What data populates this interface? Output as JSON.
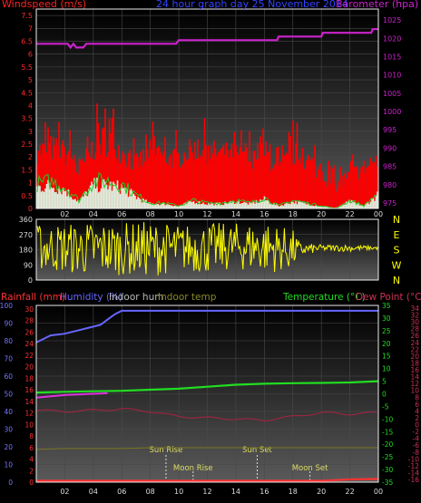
{
  "colors": {
    "windspeed": "#ff0000",
    "gust": "#ff0000",
    "barometer": "#cc22cc",
    "winddir": "#ffff00",
    "rainfall": "#ff3333",
    "humidity": "#6666ff",
    "indoor_hum": "#bbbbbb",
    "indoor_temp": "#8a8a2a",
    "temperature": "#22dd22",
    "dewpoint": "#aa2244",
    "sun": "#dddd66"
  },
  "chart_data": [
    {
      "id": "wind-baro",
      "type": "area",
      "title": "24 hour graph day  25 November 2014",
      "left_axis_label": "Windspeed (m/s)",
      "right_axis_label": "Barometer (hpa)",
      "left_ticks": [
        "0",
        "0.5",
        "1",
        "1.5",
        "2",
        "2.5",
        "3",
        "3.5",
        "4",
        "4.5",
        "5",
        "5.5",
        "6",
        "6.5",
        "7",
        "7.5"
      ],
      "right_ticks": [
        "975",
        "980",
        "985",
        "990",
        "995",
        "1000",
        "1005",
        "1010",
        "1015",
        "1020",
        "1025"
      ],
      "x_ticks": [
        "02",
        "04",
        "06",
        "08",
        "10",
        "12",
        "14",
        "16",
        "18",
        "20",
        "22",
        "00"
      ],
      "left_range": [
        0,
        7.75
      ],
      "right_range": [
        973.5,
        1028
      ],
      "hours": [
        0,
        1,
        2,
        3,
        4,
        5,
        6,
        7,
        8,
        9,
        10,
        11,
        12,
        13,
        14,
        15,
        16,
        17,
        18,
        19,
        20,
        21,
        22,
        23,
        24
      ],
      "gust_ms": [
        3.5,
        3.8,
        3.6,
        2.5,
        3.9,
        4.6,
        3.5,
        2.8,
        3.6,
        3.2,
        3.1,
        3.6,
        3.5,
        3.4,
        3.3,
        3.2,
        3.6,
        2.5,
        3.5,
        3.2,
        2.4,
        1.6,
        2.2,
        2.6,
        2.7
      ],
      "avg_ms": [
        1.7,
        1.8,
        1.6,
        1.0,
        1.8,
        2.0,
        1.7,
        1.3,
        1.6,
        1.5,
        1.5,
        1.8,
        1.7,
        1.7,
        1.6,
        1.5,
        1.7,
        1.1,
        1.6,
        1.4,
        1.0,
        0.6,
        0.9,
        1.2,
        1.4
      ],
      "windspeed_ms": [
        0.9,
        1.0,
        0.8,
        0.3,
        1.0,
        1.0,
        0.9,
        0.5,
        0.2,
        0.2,
        0.1,
        0.3,
        0.2,
        0.2,
        0.3,
        0.2,
        0.4,
        0.1,
        0.3,
        0.2,
        0.1,
        0.0,
        0.3,
        0.1,
        0.6
      ],
      "barometer_hours": [
        0,
        2.2,
        2.4,
        2.6,
        2.8,
        3.3,
        3.5,
        4,
        6,
        8,
        9.8,
        10,
        14,
        16.9,
        17,
        20,
        20.1,
        23.5,
        23.6,
        24
      ],
      "barometer_hpa": [
        1018.5,
        1018.5,
        1017.5,
        1018.5,
        1017.5,
        1017.5,
        1018.5,
        1018.5,
        1018.5,
        1018.5,
        1018.5,
        1019.5,
        1019.5,
        1019.5,
        1020.5,
        1020.5,
        1021.5,
        1021.5,
        1022.5,
        1022.5
      ]
    },
    {
      "id": "wind-direction",
      "type": "line",
      "y_ticks": [
        "0",
        "90",
        "180",
        "270",
        "360"
      ],
      "compass_labels": [
        "N",
        "W",
        "S",
        "E",
        "N"
      ],
      "y_range": [
        0,
        360
      ],
      "hours": [
        0,
        2,
        4,
        6,
        8,
        10,
        12,
        14,
        16,
        18,
        18.5,
        20,
        22,
        24
      ],
      "direction_low": [
        60,
        40,
        20,
        30,
        20,
        50,
        40,
        60,
        40,
        60,
        140,
        170,
        170,
        180
      ],
      "direction_high": [
        330,
        340,
        350,
        340,
        350,
        330,
        340,
        340,
        350,
        300,
        220,
        210,
        210,
        200
      ]
    },
    {
      "id": "temp-hum-rain",
      "type": "line",
      "labels": {
        "rainfall": "Rainfall (mm)",
        "humidity": "Humidity (%)",
        "indoor_hum": "Indoor hum",
        "indoor_temp": "Indoor temp",
        "temperature": "Temperature (°C)",
        "dewpoint": "Dew Point (°C)"
      },
      "hum_ticks": [
        "0",
        "10",
        "20",
        "30",
        "40",
        "50",
        "60",
        "70",
        "80",
        "90",
        "100"
      ],
      "rain_ticks": [
        "0",
        "2",
        "4",
        "6",
        "8",
        "10",
        "12",
        "14",
        "16",
        "18",
        "20",
        "22",
        "24",
        "26",
        "28",
        "30"
      ],
      "temp_ticks": [
        "-35",
        "-30",
        "-25",
        "-20",
        "-15",
        "-10",
        "-5",
        "0",
        "5",
        "10",
        "15",
        "20",
        "25",
        "30",
        "35"
      ],
      "dew_ticks": [
        "-16",
        "-14",
        "-12",
        "-10",
        "-8",
        "-6",
        "-4",
        "-2",
        "0",
        "2",
        "4",
        "6",
        "8",
        "10",
        "12",
        "14",
        "16",
        "18",
        "20",
        "22",
        "24",
        "26",
        "28",
        "30",
        "32",
        "34"
      ],
      "x_ticks": [
        "02",
        "04",
        "06",
        "08",
        "10",
        "12",
        "14",
        "16",
        "18",
        "20",
        "22",
        "00"
      ],
      "hum_range": [
        0,
        100
      ],
      "temp_range": [
        -35,
        35
      ],
      "hours": [
        0,
        0.5,
        1,
        2,
        3,
        4,
        4.5,
        5,
        5.5,
        6,
        8,
        10,
        12,
        14,
        16,
        18,
        20,
        22,
        24
      ],
      "humidity_pct": [
        79,
        81,
        83,
        84,
        86,
        88,
        89,
        92,
        95,
        97,
        97,
        97,
        97,
        97,
        97,
        97,
        97,
        97,
        97
      ],
      "temp_hours": [
        0,
        2,
        4,
        6,
        8,
        10,
        12,
        14,
        16,
        18,
        20,
        22,
        24
      ],
      "temperature_c": [
        0.5,
        0.8,
        1.0,
        1.2,
        1.6,
        2.0,
        2.8,
        3.6,
        4.0,
        4.2,
        4.3,
        4.5,
        5.0
      ],
      "indoor_temp_c": [
        -1.5,
        -0.5,
        0,
        0.5,
        1.0,
        1.6,
        2.6,
        3.5,
        4.0,
        4.2,
        4.3,
        4.5,
        5.0
      ],
      "dewpoint_c": [
        -6.5,
        -7,
        -6.5,
        -6,
        -7,
        -9,
        -9.5,
        -10,
        -10.5,
        -9,
        -7.5,
        -8,
        -7.5
      ],
      "indoor_hum_pct": [
        18.5,
        19,
        19,
        19,
        19.5,
        19.5,
        19.5,
        19.5,
        19.5,
        19.5,
        19.5,
        19.5,
        19.5
      ],
      "rainfall_mm": [
        0,
        0,
        0,
        0,
        0,
        0,
        0,
        0,
        0,
        0,
        0,
        0.3,
        0.4
      ],
      "events": [
        {
          "label": "Sun Rise",
          "hour": 9.1
        },
        {
          "label": "Moon Rise",
          "hour": 11.0
        },
        {
          "label": "Sun Set",
          "hour": 15.5
        },
        {
          "label": "Moon Set",
          "hour": 19.2
        }
      ]
    }
  ]
}
